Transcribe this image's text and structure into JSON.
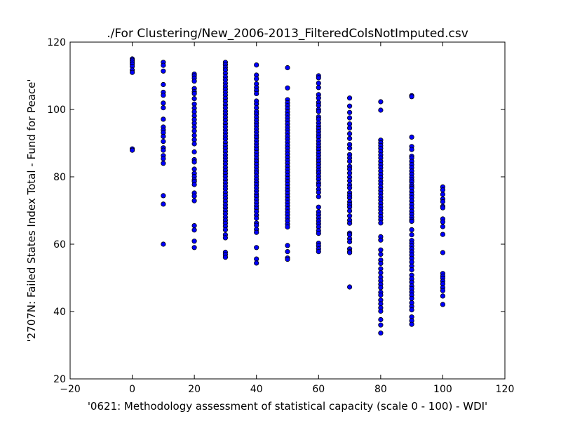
{
  "chart_data": {
    "type": "scatter",
    "title": "./For Clustering/New_2006-2013_FilteredColsNotImputed.csv",
    "xlabel": "'0621: Methodology assessment of statistical capacity  (scale 0 - 100) - WDI'",
    "ylabel": "'2707N: Failed States Index Total - Fund for Peace'",
    "xlim": [
      -20,
      120
    ],
    "ylim": [
      20,
      120
    ],
    "xticks": [
      -20,
      0,
      20,
      40,
      60,
      80,
      100,
      120
    ],
    "yticks": [
      20,
      40,
      60,
      80,
      100,
      120
    ],
    "xtick_labels": [
      "−20",
      "0",
      "20",
      "40",
      "60",
      "80",
      "100",
      "120"
    ],
    "ytick_labels": [
      "20",
      "40",
      "60",
      "80",
      "100",
      "120"
    ],
    "grid": false,
    "legend": "none",
    "marker_color": "#0000ff",
    "marker_edge_color": "#000000",
    "columns": [
      {
        "x": 0,
        "y": [
          115.0,
          114.6,
          114.1,
          113.5,
          112.8,
          111.7,
          111.0,
          88.3,
          87.9
        ]
      },
      {
        "x": 10,
        "y": [
          114.0,
          113.1,
          111.4,
          107.4,
          105.1,
          104.2,
          101.9,
          100.5,
          97.1,
          94.8,
          93.9,
          93.1,
          92.0,
          90.5,
          88.6,
          87.9,
          86.3,
          85.4,
          84.0,
          74.4,
          71.9,
          60.0
        ]
      },
      {
        "x": 20,
        "y": [
          110.5,
          110.0,
          109.3,
          108.4,
          106.2,
          105.3,
          104.7,
          103.2,
          101.6,
          100.4,
          99.3,
          98.1,
          97.0,
          95.9,
          94.8,
          93.6,
          92.3,
          91.0,
          89.8,
          87.4,
          85.1,
          84.4,
          82.3,
          81.0,
          80.1,
          79.1,
          78.6,
          77.7,
          75.2,
          74.3,
          72.9,
          65.5,
          64.2,
          60.9,
          59.0
        ]
      },
      {
        "x": 30,
        "y": [
          114.0,
          113.3,
          112.5,
          111.7,
          110.7,
          109.7,
          108.8,
          107.8,
          106.9,
          106.0,
          105.1,
          104.2,
          103.3,
          102.4,
          101.4,
          100.5,
          99.5,
          98.6,
          97.7,
          96.8,
          95.8,
          94.9,
          93.9,
          93.0,
          92.1,
          91.2,
          90.2,
          89.3,
          88.4,
          87.5,
          86.5,
          85.6,
          84.7,
          83.8,
          82.8,
          81.9,
          81.0,
          80.1,
          79.1,
          78.2,
          77.3,
          76.4,
          75.4,
          74.5,
          73.6,
          72.7,
          71.7,
          70.8,
          69.9,
          69.0,
          68.0,
          67.1,
          66.2,
          65.3,
          64.3,
          62.8,
          61.9,
          57.6,
          56.9,
          56.1
        ]
      },
      {
        "x": 40,
        "y": [
          113.2,
          110.2,
          109.1,
          107.6,
          106.5,
          105.6,
          104.7,
          102.5,
          101.6,
          100.5,
          99.4,
          98.6,
          97.7,
          96.8,
          95.9,
          95.1,
          94.2,
          93.3,
          92.4,
          91.6,
          90.7,
          89.8,
          88.9,
          88.1,
          87.2,
          86.3,
          85.4,
          84.6,
          83.7,
          82.8,
          81.9,
          81.1,
          80.2,
          79.3,
          78.4,
          77.6,
          76.7,
          75.8,
          74.9,
          74.1,
          73.2,
          72.3,
          71.4,
          70.6,
          69.7,
          68.6,
          67.7,
          66.3,
          65.6,
          64.4,
          63.5,
          59.0,
          55.6,
          54.4
        ]
      },
      {
        "x": 50,
        "y": [
          112.4,
          106.4,
          102.9,
          102.0,
          101.1,
          100.2,
          99.3,
          98.4,
          97.5,
          96.6,
          95.7,
          94.8,
          93.9,
          93.0,
          92.1,
          91.2,
          90.3,
          89.4,
          88.5,
          87.6,
          86.7,
          85.8,
          84.9,
          84.0,
          83.1,
          82.2,
          81.3,
          80.4,
          79.5,
          78.6,
          77.7,
          76.8,
          75.9,
          75.0,
          74.1,
          73.2,
          72.3,
          71.4,
          70.5,
          69.6,
          68.7,
          67.8,
          66.9,
          65.9,
          65.1,
          59.6,
          57.8,
          55.9,
          55.5
        ]
      },
      {
        "x": 60,
        "y": [
          110.0,
          109.4,
          107.8,
          106.5,
          104.4,
          103.4,
          102.1,
          101.2,
          100.0,
          99.4,
          97.8,
          97.1,
          96.0,
          95.1,
          94.3,
          93.4,
          92.5,
          91.7,
          90.7,
          89.8,
          88.9,
          88.1,
          87.2,
          86.3,
          85.4,
          84.6,
          83.7,
          82.8,
          81.9,
          81.1,
          80.2,
          79.3,
          78.2,
          77.5,
          76.3,
          75.4,
          74.1,
          71.0,
          69.6,
          68.7,
          67.8,
          66.9,
          66.0,
          65.1,
          64.0,
          63.2,
          60.3,
          59.5,
          58.6,
          57.8
        ]
      },
      {
        "x": 70,
        "y": [
          103.4,
          101.0,
          99.1,
          97.5,
          95.7,
          94.5,
          92.8,
          91.4,
          89.6,
          88.5,
          86.6,
          85.6,
          84.6,
          83.1,
          82.3,
          81.1,
          79.9,
          78.8,
          77.6,
          76.7,
          75.3,
          74.5,
          73.7,
          72.6,
          71.8,
          71.0,
          69.9,
          68.4,
          67.1,
          66.2,
          63.3,
          62.8,
          61.6,
          60.7,
          58.6,
          57.8,
          57.5,
          47.3
        ]
      },
      {
        "x": 80,
        "y": [
          102.3,
          99.8,
          90.9,
          90.1,
          89.3,
          88.4,
          87.5,
          86.5,
          85.6,
          84.6,
          83.6,
          82.7,
          81.7,
          80.7,
          79.8,
          78.8,
          77.9,
          76.9,
          75.9,
          75.0,
          74.0,
          73.1,
          72.1,
          71.1,
          70.2,
          69.2,
          68.2,
          67.3,
          66.3,
          62.2,
          61.2,
          58.3,
          57.0,
          55.3,
          54.3,
          52.7,
          51.5,
          50.2,
          49.1,
          48.1,
          47.1,
          45.7,
          44.9,
          43.4,
          42.3,
          41.1,
          40.1,
          37.6,
          36.0,
          33.6
        ]
      },
      {
        "x": 90,
        "y": [
          104.1,
          103.8,
          91.8,
          89.0,
          88.1,
          86.1,
          85.6,
          84.6,
          83.6,
          82.7,
          81.7,
          80.8,
          79.9,
          79.1,
          78.5,
          77.6,
          77.0,
          76.6,
          75.6,
          74.7,
          73.8,
          72.8,
          71.8,
          70.8,
          69.8,
          68.9,
          68.0,
          67.2,
          66.8,
          64.3,
          62.8,
          61.1,
          60.3,
          59.5,
          58.6,
          57.7,
          56.8,
          55.8,
          54.7,
          53.5,
          52.4,
          50.8,
          49.7,
          48.7,
          47.6,
          46.8,
          45.8,
          44.9,
          43.9,
          42.6,
          41.5,
          40.5,
          38.4,
          37.3,
          36.2
        ]
      },
      {
        "x": 100,
        "y": [
          77.0,
          76.1,
          74.8,
          73.4,
          72.6,
          71.2,
          70.8,
          67.5,
          66.6,
          65.2,
          62.9,
          57.5,
          51.3,
          50.5,
          49.9,
          49.0,
          48.2,
          47.1,
          46.2,
          44.6,
          42.1
        ]
      }
    ]
  }
}
